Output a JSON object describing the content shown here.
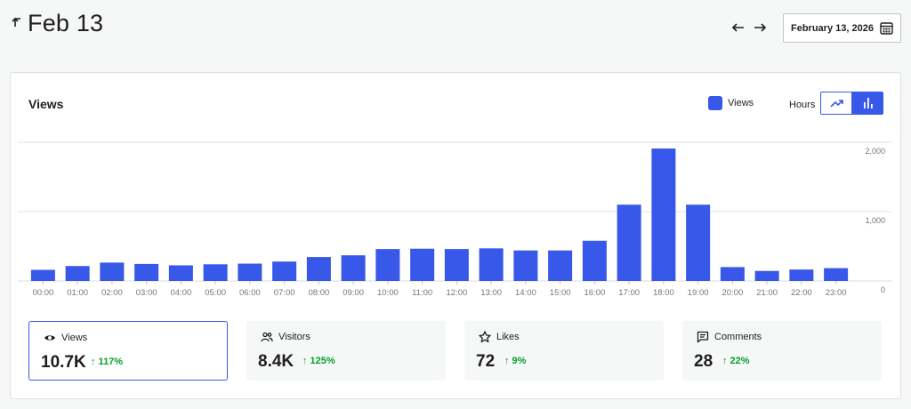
{
  "header": {
    "title": "Feb 13",
    "date_value": "February 13, 2026"
  },
  "card": {
    "title": "Views",
    "legend_label": "Views",
    "period_label": "Hours"
  },
  "colors": {
    "accent": "#3858e9",
    "positive": "#00a32a",
    "page_bg": "#f6f7f7",
    "grid": "#e0e0e0",
    "tick_text": "#757575"
  },
  "icons": {
    "back": "back-arrow-icon",
    "prev": "arrow-left-icon",
    "next": "arrow-right-icon",
    "calendar": "calendar-icon",
    "line_chart": "trending-line-icon",
    "bar_chart": "bar-chart-icon",
    "views": "eye-icon",
    "visitors": "people-icon",
    "likes": "star-icon",
    "comments": "comment-icon"
  },
  "stats": [
    {
      "label": "Views",
      "value": "10.7K",
      "change": "↑ 117%"
    },
    {
      "label": "Visitors",
      "value": "8.4K",
      "change": "↑ 125%"
    },
    {
      "label": "Likes",
      "value": "72",
      "change": "↑ 9%"
    },
    {
      "label": "Comments",
      "value": "28",
      "change": "↑ 22%"
    }
  ],
  "chart_data": {
    "type": "bar",
    "categories": [
      "00:00",
      "01:00",
      "02:00",
      "03:00",
      "04:00",
      "05:00",
      "06:00",
      "07:00",
      "08:00",
      "09:00",
      "10:00",
      "11:00",
      "12:00",
      "13:00",
      "14:00",
      "15:00",
      "16:00",
      "17:00",
      "18:00",
      "19:00",
      "20:00",
      "21:00",
      "22:00",
      "23:00"
    ],
    "series": [
      {
        "name": "Views",
        "values": [
          160,
          215,
          265,
          245,
          225,
          240,
          250,
          280,
          345,
          370,
          460,
          465,
          460,
          470,
          440,
          440,
          580,
          1100,
          1910,
          1100,
          200,
          145,
          165,
          185
        ]
      }
    ],
    "ylim": [
      0,
      2000
    ],
    "yticks": [
      "2,000",
      "1,000",
      "0"
    ],
    "ytick_values": [
      2000,
      1000,
      0
    ],
    "grid": true,
    "legend": "top-right",
    "color": "#3858e9"
  }
}
